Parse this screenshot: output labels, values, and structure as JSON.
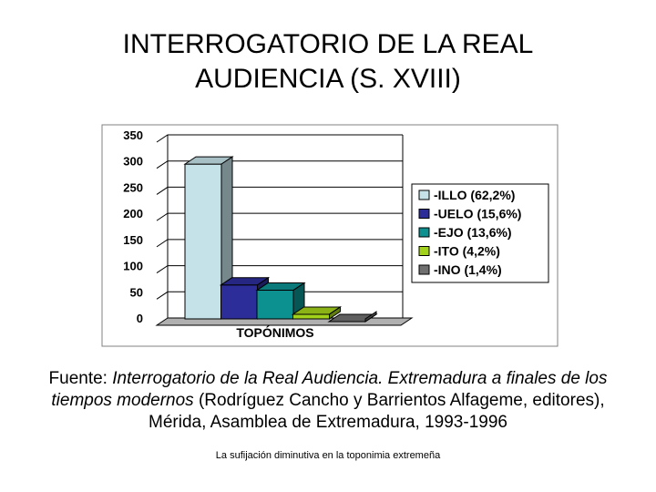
{
  "slide": {
    "title_line1": "INTERROGATORIO DE LA REAL",
    "title_line2": "AUDIENCIA (S. XVIII)"
  },
  "source": {
    "prefix": "Fuente: ",
    "italic": "Interrogatorio de la Real Audiencia. Extremadura a finales de los tiempos modernos",
    "suffix": " (Rodríguez Cancho y Barrientos Alfageme, editores), Mérida, Asamblea de Extremadura, 1993-1996"
  },
  "footer": "La sufijación diminutiva en la toponimia extremeña",
  "chart_data": {
    "type": "bar",
    "categories": [
      "TOPÓNIMOS"
    ],
    "xlabel": "TOPÓNIMOS",
    "ylim": [
      0,
      350
    ],
    "yticks": [
      "0",
      "50",
      "100",
      "150",
      "200",
      "250",
      "300",
      "350"
    ],
    "grid": true,
    "legend_position": "right",
    "series": [
      {
        "name": "-ILLO (62,2%)",
        "values": [
          308
        ],
        "color": "#c4e2e8"
      },
      {
        "name": "-UELO (15,6%)",
        "values": [
          77
        ],
        "color": "#2d2d9a"
      },
      {
        "name": "-EJO (13,6%)",
        "values": [
          67
        ],
        "color": "#0c9090"
      },
      {
        "name": "-ITO (4,2%)",
        "values": [
          21
        ],
        "color": "#a3d21a"
      },
      {
        "name": "-INO (1,4%)",
        "values": [
          7
        ],
        "color": "#707070"
      }
    ]
  }
}
